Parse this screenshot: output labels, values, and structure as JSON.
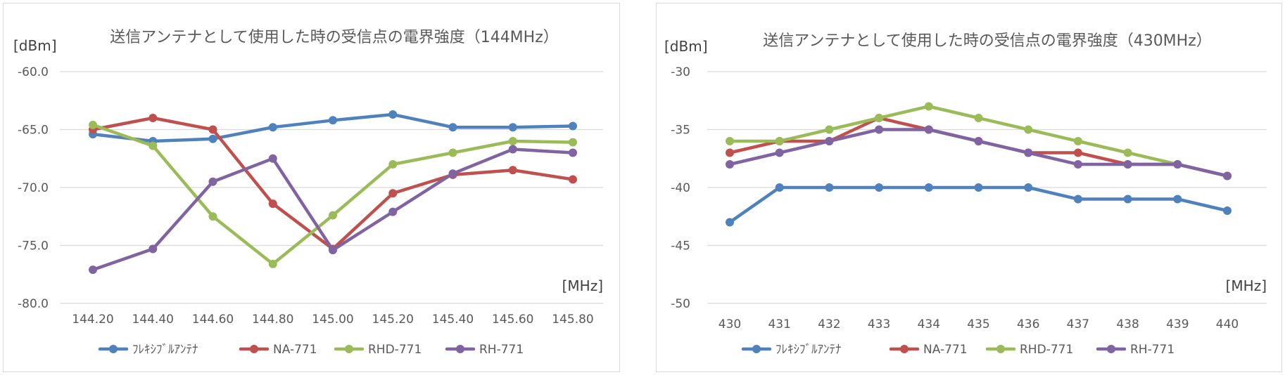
{
  "chart_data": [
    {
      "type": "line",
      "title": "送信アンテナとして使用した時の受信点の電界強度（144MHz）",
      "ylabel": "[dBm]",
      "xlabel": "[MHz]",
      "categories": [
        "144.20",
        "144.40",
        "144.60",
        "144.80",
        "145.00",
        "145.20",
        "145.40",
        "145.60",
        "145.80"
      ],
      "y_tick_labels": [
        "-60.0",
        "-65.0",
        "-70.0",
        "-75.0",
        "-80.0"
      ],
      "ylim": [
        -80,
        -60
      ],
      "grid": true,
      "legend_position": "bottom",
      "series": [
        {
          "name": "ﾌﾚｷｼﾌﾞﾙｱﾝﾃﾅ",
          "color": "#4f81bd",
          "values": [
            -65.4,
            -66.0,
            -65.8,
            -64.8,
            -64.2,
            -63.7,
            -64.8,
            -64.8,
            -64.7
          ]
        },
        {
          "name": "NA-771",
          "color": "#c0504d",
          "values": [
            -65.0,
            -64.0,
            -65.0,
            -71.4,
            -75.3,
            -70.5,
            -68.9,
            -68.5,
            -69.3
          ]
        },
        {
          "name": "RHD-771",
          "color": "#9bbb59",
          "values": [
            -64.6,
            -66.4,
            -72.5,
            -76.6,
            -72.4,
            -68.0,
            -67.0,
            -66.0,
            -66.1
          ]
        },
        {
          "name": "RH-771",
          "color": "#8064a2",
          "values": [
            -77.1,
            -75.3,
            -69.5,
            -67.5,
            -75.4,
            -72.1,
            -68.8,
            -66.7,
            -67.0
          ]
        }
      ]
    },
    {
      "type": "line",
      "title": "送信アンテナとして使用した時の受信点の電界強度（430MHz）",
      "ylabel": "[dBm]",
      "xlabel": "[MHz]",
      "categories": [
        "430",
        "431",
        "432",
        "433",
        "434",
        "435",
        "436",
        "437",
        "438",
        "439",
        "440"
      ],
      "y_tick_labels": [
        "-30",
        "-35",
        "-40",
        "-45",
        "-50"
      ],
      "ylim": [
        -50,
        -30
      ],
      "grid": true,
      "legend_position": "bottom",
      "series": [
        {
          "name": "ﾌﾚｷｼﾌﾞﾙｱﾝﾃﾅ",
          "color": "#4f81bd",
          "values": [
            -43,
            -40,
            -40,
            -40,
            -40,
            -40,
            -40,
            -41,
            -41,
            -41,
            -42
          ]
        },
        {
          "name": "NA-771",
          "color": "#c0504d",
          "values": [
            -37,
            -36,
            -36,
            -34,
            -35,
            -36,
            -37,
            -37,
            -38,
            -38,
            -39
          ]
        },
        {
          "name": "RHD-771",
          "color": "#9bbb59",
          "values": [
            -36,
            -36,
            -35,
            -34,
            -33,
            -34,
            -35,
            -36,
            -37,
            -38,
            -39
          ]
        },
        {
          "name": "RH-771",
          "color": "#8064a2",
          "values": [
            -38,
            -37,
            -36,
            -35,
            -35,
            -36,
            -37,
            -38,
            -38,
            -38,
            -39
          ]
        }
      ]
    }
  ]
}
